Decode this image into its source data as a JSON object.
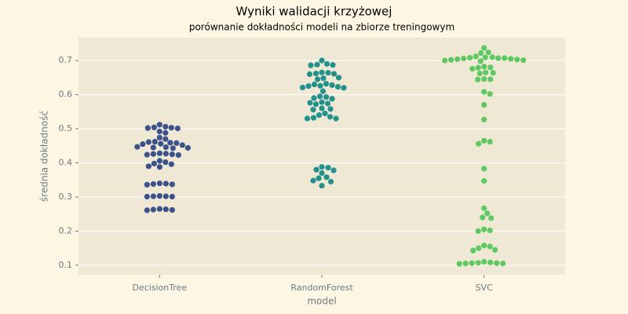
{
  "chart_data": {
    "type": "swarm",
    "title": "Wyniki walidacji krzyżowej",
    "subtitle": "porównanie dokładności modeli na zbiorze treningowym",
    "x_label": "model",
    "y_label": "średnia dokładność",
    "categories": [
      "DecisionTree",
      "RandomForest",
      "SVC"
    ],
    "colors": [
      "#3b528b",
      "#21918c",
      "#5ec962"
    ],
    "values": [
      [
        0.512,
        0.506,
        0.504,
        0.503,
        0.502,
        0.501,
        0.492,
        0.488,
        0.474,
        0.47,
        0.462,
        0.461,
        0.459,
        0.458,
        0.456,
        0.455,
        0.452,
        0.447,
        0.446,
        0.445,
        0.444,
        0.443,
        0.428,
        0.427,
        0.426,
        0.425,
        0.424,
        0.423,
        0.406,
        0.402,
        0.398,
        0.396,
        0.39,
        0.388,
        0.34,
        0.339,
        0.338,
        0.337,
        0.336,
        0.303,
        0.302,
        0.302,
        0.301,
        0.301,
        0.265,
        0.264,
        0.263,
        0.262,
        0.261
      ],
      [
        0.7,
        0.69,
        0.688,
        0.687,
        0.686,
        0.665,
        0.664,
        0.662,
        0.661,
        0.66,
        0.65,
        0.648,
        0.645,
        0.632,
        0.63,
        0.628,
        0.626,
        0.625,
        0.623,
        0.621,
        0.62,
        0.61,
        0.595,
        0.593,
        0.59,
        0.588,
        0.578,
        0.576,
        0.574,
        0.572,
        0.56,
        0.558,
        0.556,
        0.545,
        0.54,
        0.535,
        0.532,
        0.53,
        0.53,
        0.388,
        0.386,
        0.38,
        0.378,
        0.37,
        0.358,
        0.355,
        0.348,
        0.345,
        0.333
      ],
      [
        0.737,
        0.724,
        0.722,
        0.712,
        0.71,
        0.709,
        0.708,
        0.707,
        0.707,
        0.706,
        0.705,
        0.704,
        0.703,
        0.702,
        0.701,
        0.7,
        0.698,
        0.682,
        0.68,
        0.679,
        0.676,
        0.665,
        0.664,
        0.662,
        0.646,
        0.645,
        0.644,
        0.608,
        0.602,
        0.57,
        0.527,
        0.465,
        0.462,
        0.456,
        0.383,
        0.347,
        0.267,
        0.252,
        0.24,
        0.238,
        0.205,
        0.202,
        0.2,
        0.158,
        0.155,
        0.15,
        0.145,
        0.143,
        0.11,
        0.108,
        0.107,
        0.106,
        0.106,
        0.105,
        0.105,
        0.104
      ]
    ],
    "ylim": [
      0.072,
      0.767
    ],
    "yticks": [
      0.1,
      0.2,
      0.3,
      0.4,
      0.5,
      0.6,
      0.7
    ],
    "grid": true
  }
}
